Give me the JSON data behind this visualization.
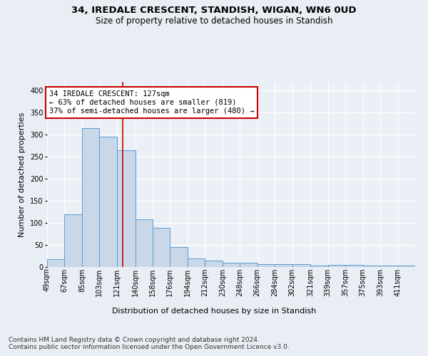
{
  "title1": "34, IREDALE CRESCENT, STANDISH, WIGAN, WN6 0UD",
  "title2": "Size of property relative to detached houses in Standish",
  "xlabel": "Distribution of detached houses by size in Standish",
  "ylabel": "Number of detached properties",
  "categories": [
    "49sqm",
    "67sqm",
    "85sqm",
    "103sqm",
    "121sqm",
    "140sqm",
    "158sqm",
    "176sqm",
    "194sqm",
    "212sqm",
    "230sqm",
    "248sqm",
    "266sqm",
    "284sqm",
    "302sqm",
    "321sqm",
    "339sqm",
    "357sqm",
    "375sqm",
    "393sqm",
    "411sqm"
  ],
  "values": [
    18,
    120,
    315,
    295,
    265,
    109,
    89,
    45,
    20,
    15,
    9,
    9,
    7,
    7,
    6,
    3,
    5,
    5,
    3,
    3,
    3
  ],
  "bar_color": "#c8d8e8",
  "bar_edge_color": "#5b9bd5",
  "annotation_line1": "34 IREDALE CRESCENT: 127sqm",
  "annotation_line2": "← 63% of detached houses are smaller (819)",
  "annotation_line3": "37% of semi-detached houses are larger (480) →",
  "vline_x": 127,
  "vline_color": "#cc0000",
  "annotation_box_color": "#ffffff",
  "annotation_box_edge": "#cc0000",
  "footnote": "Contains HM Land Registry data © Crown copyright and database right 2024.\nContains public sector information licensed under the Open Government Licence v3.0.",
  "ylim": [
    0,
    420
  ],
  "yticks": [
    0,
    50,
    100,
    150,
    200,
    250,
    300,
    350,
    400
  ],
  "bg_color": "#e8eef4",
  "plot_bg_color": "#eaf0f6",
  "grid_color": "#ffffff",
  "title1_fontsize": 9.5,
  "title2_fontsize": 8.5,
  "axis_label_fontsize": 8,
  "tick_fontsize": 7,
  "annotation_fontsize": 7.5,
  "footnote_fontsize": 6.5,
  "ylabel_fontsize": 8
}
